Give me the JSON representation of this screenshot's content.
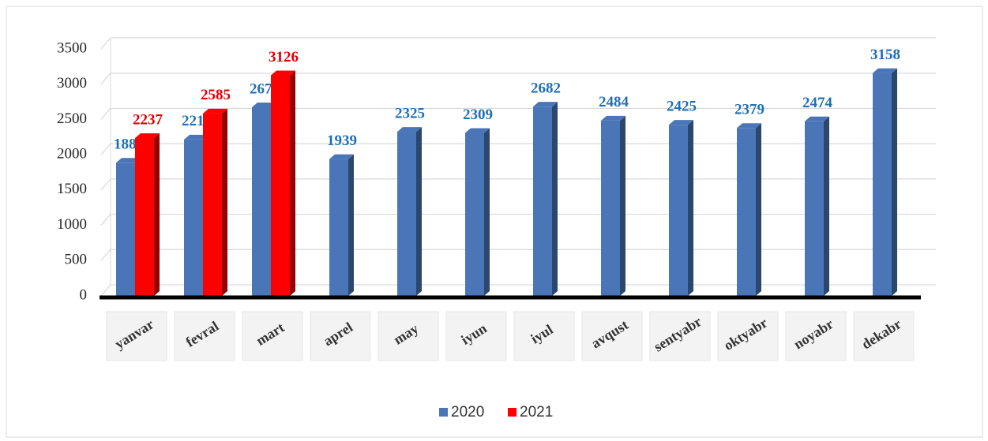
{
  "chart_data": {
    "type": "bar",
    "categories": [
      "yanvar",
      "fevral",
      "mart",
      "aprel",
      "may",
      "iyun",
      "iyul",
      "avqust",
      "sentyabr",
      "oktyabr",
      "noyabr",
      "dekabr"
    ],
    "series": [
      {
        "name": "2020",
        "color": "#4a76b8",
        "label_color": "#1f6fb4",
        "values": [
          1887,
          2216,
          2673,
          1939,
          2325,
          2309,
          2682,
          2484,
          2425,
          2379,
          2474,
          3158
        ]
      },
      {
        "name": "2021",
        "color": "#ff0000",
        "label_color": "#e00000",
        "values": [
          2237,
          2585,
          3126,
          null,
          null,
          null,
          null,
          null,
          null,
          null,
          null,
          null
        ]
      }
    ],
    "ylim": [
      0,
      3500
    ],
    "yticks": [
      0,
      500,
      1000,
      1500,
      2000,
      2500,
      3000,
      3500
    ],
    "grid": true,
    "legend": "bottom"
  }
}
